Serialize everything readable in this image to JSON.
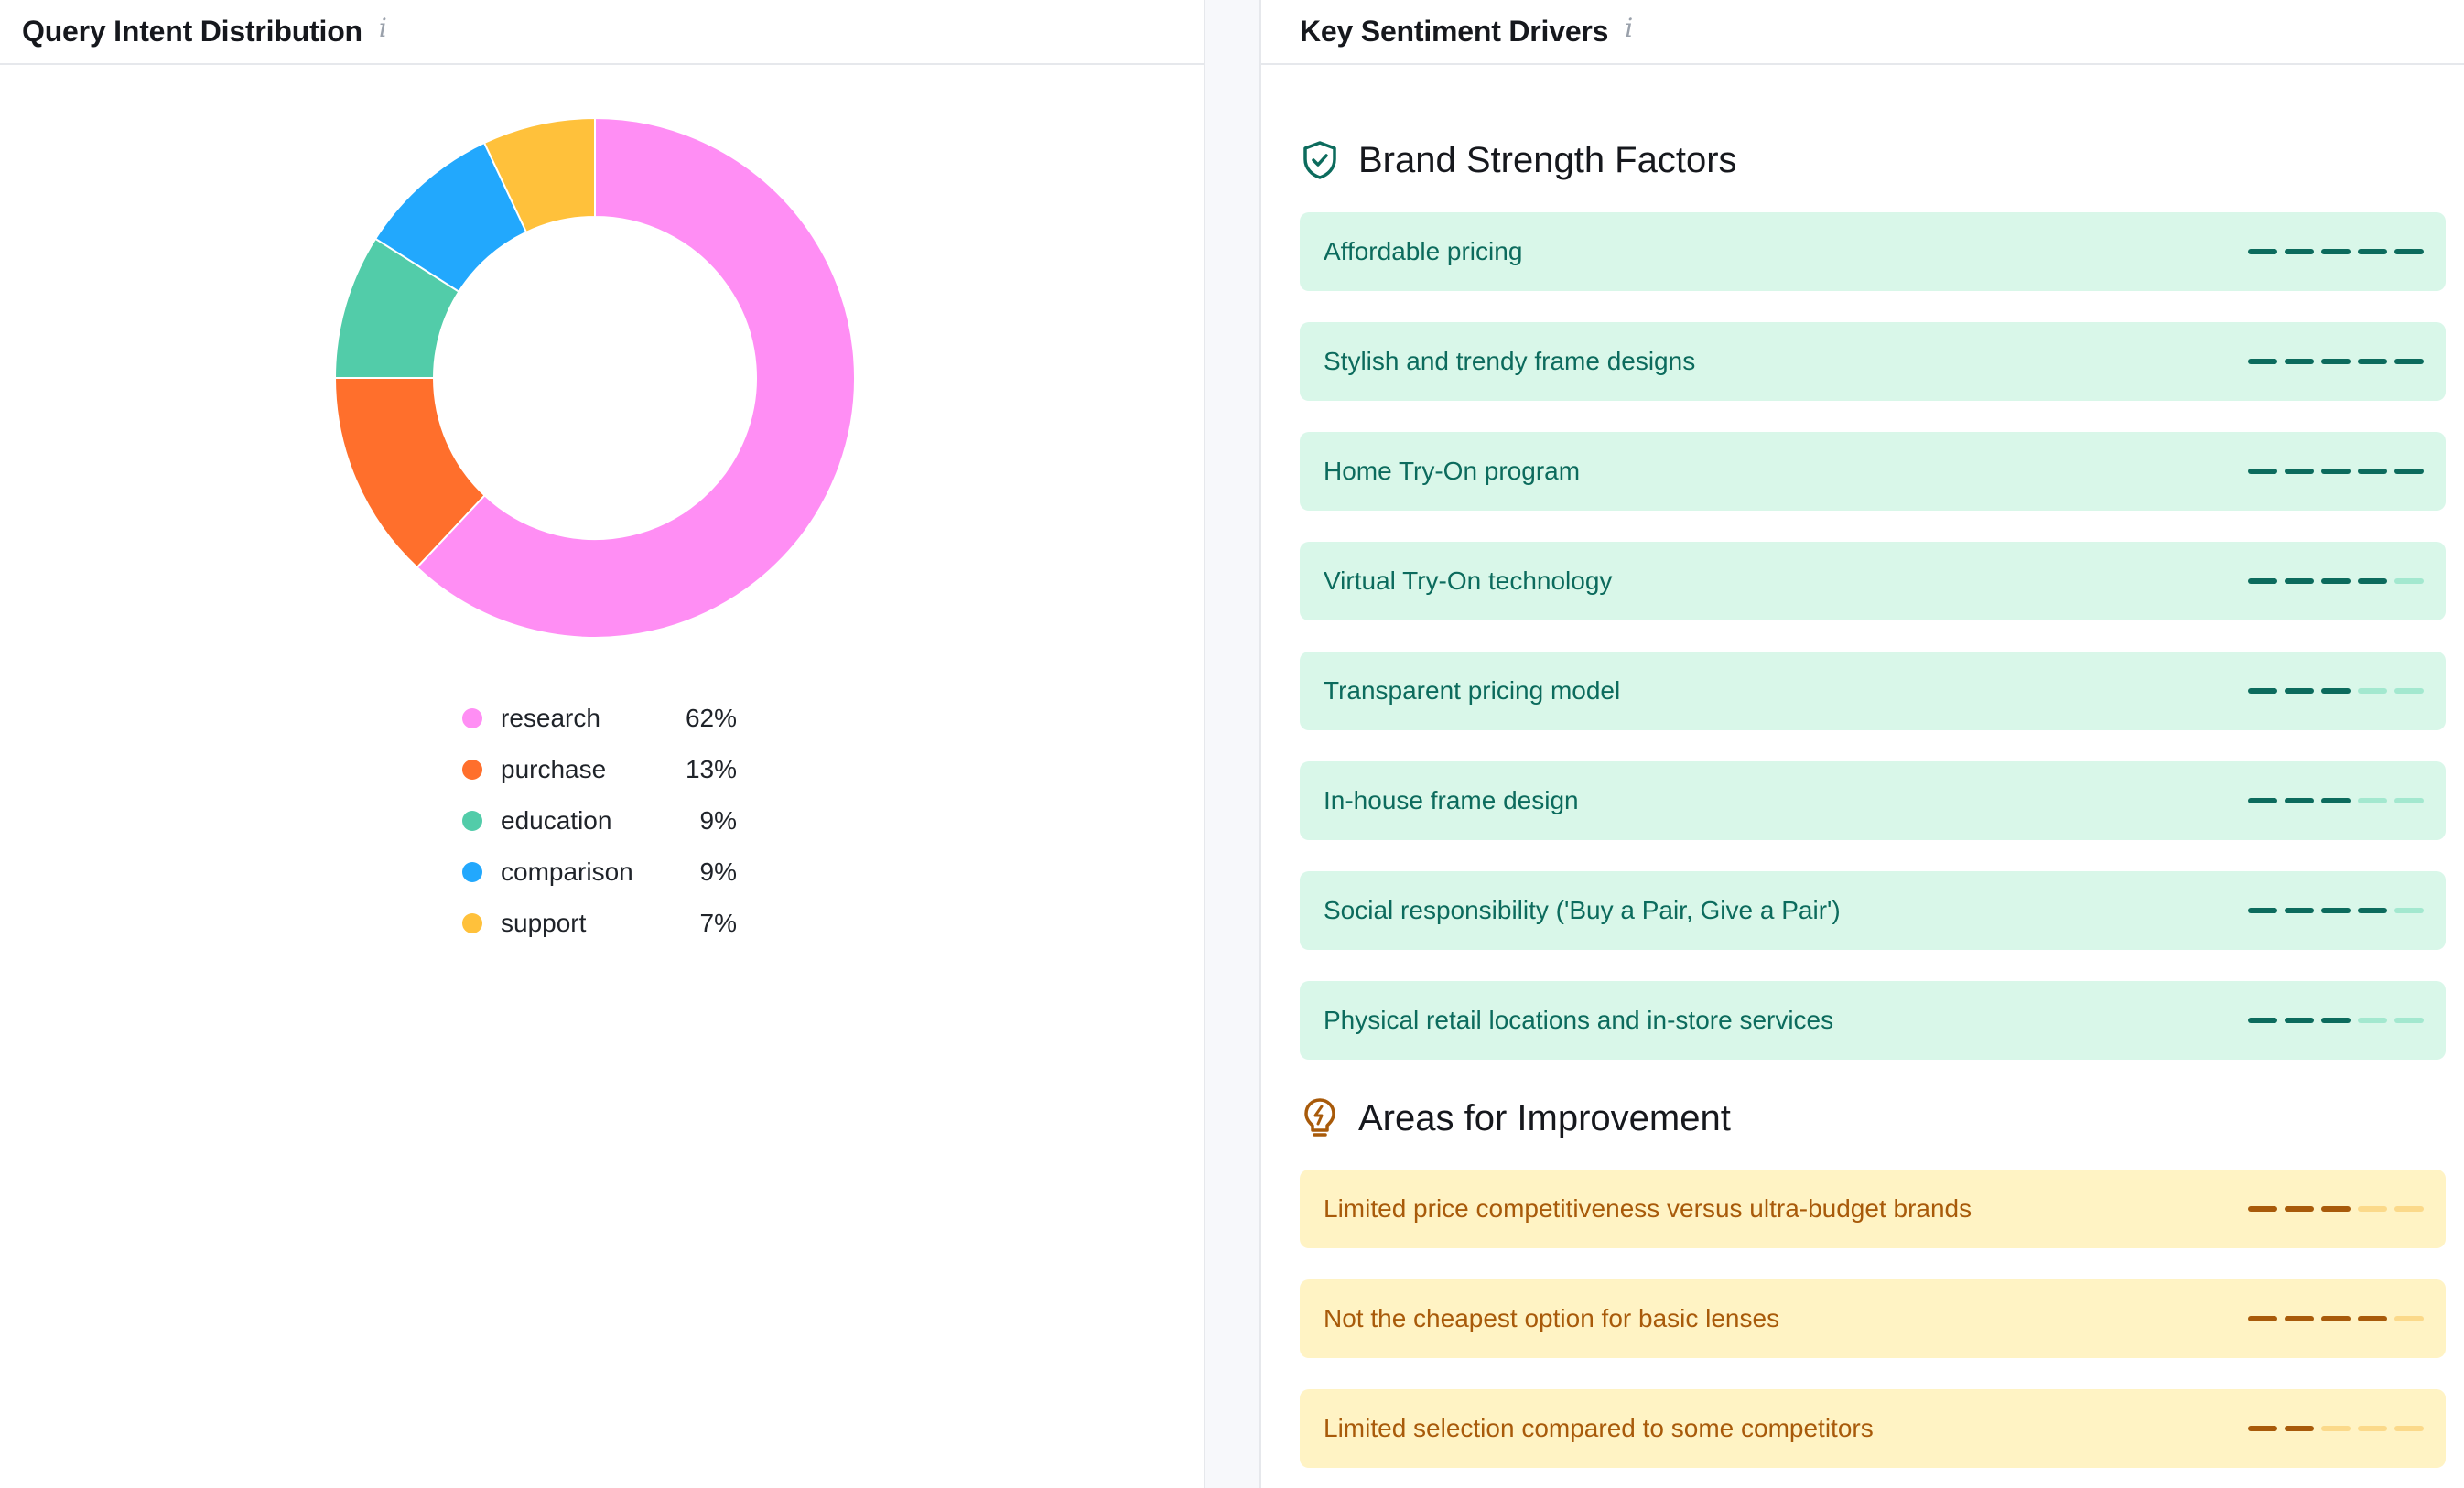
{
  "left_card": {
    "title": "Query Intent Distribution",
    "info": "i"
  },
  "right_card": {
    "title": "Key Sentiment Drivers",
    "info": "i"
  },
  "chart_data": {
    "type": "pie",
    "donut": true,
    "title": "",
    "legend_position": "bottom",
    "categories": [
      "research",
      "purchase",
      "education",
      "comparison",
      "support"
    ],
    "values": [
      62,
      13,
      9,
      9,
      7
    ],
    "value_labels": [
      "62%",
      "13%",
      "9%",
      "9%",
      "7%"
    ],
    "colors": [
      "#ff8ef4",
      "#ff6f2c",
      "#52cca9",
      "#22a8fd",
      "#ffc13b"
    ]
  },
  "strengths": {
    "title": "Brand Strength Factors",
    "icon": "shield-check-icon",
    "items": [
      {
        "label": "Affordable pricing",
        "score": 5
      },
      {
        "label": "Stylish and trendy frame designs",
        "score": 5
      },
      {
        "label": "Home Try-On program",
        "score": 5
      },
      {
        "label": "Virtual Try-On technology",
        "score": 4
      },
      {
        "label": "Transparent pricing model",
        "score": 3
      },
      {
        "label": "In-house frame design",
        "score": 3
      },
      {
        "label": "Social responsibility ('Buy a Pair, Give a Pair')",
        "score": 4
      },
      {
        "label": "Physical retail locations and in-store services",
        "score": 3
      }
    ]
  },
  "improvements": {
    "title": "Areas for Improvement",
    "icon": "lightbulb-icon",
    "items": [
      {
        "label": "Limited price competitiveness versus ultra-budget brands",
        "score": 3
      },
      {
        "label": "Not the cheapest option for basic lenses",
        "score": 4
      },
      {
        "label": "Limited selection compared to some competitors",
        "score": 2
      }
    ]
  },
  "score_max": 5
}
